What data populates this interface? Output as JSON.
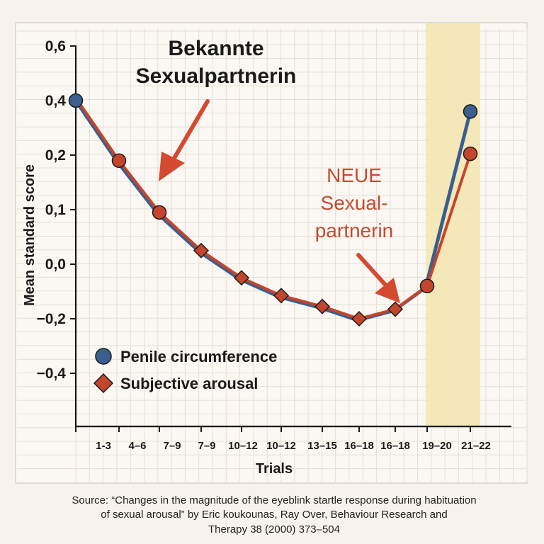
{
  "chart_data": {
    "type": "line",
    "ylabel": "Mean standard score",
    "xlabel": "Trials",
    "categories": [
      "1-3",
      "4–6",
      "7–9",
      "7–9",
      "10–12",
      "10–12",
      "13–15",
      "16–18",
      "16–18",
      "19–20",
      "21–22"
    ],
    "y_ticks": [
      {
        "value": 0.6,
        "label": "0,6"
      },
      {
        "value": 0.4,
        "label": "0,4"
      },
      {
        "value": 0.2,
        "label": "0,2"
      },
      {
        "value": 0.1,
        "label": "0,1"
      },
      {
        "value": 0.0,
        "label": "0,0"
      },
      {
        "value": -0.2,
        "label": "−0,2"
      },
      {
        "value": -0.4,
        "label": "−0,4"
      }
    ],
    "series": [
      {
        "name": "Penile circumference",
        "marker": "circle",
        "color": "#3a5f8f",
        "points": [
          {
            "label": "1-3",
            "value": 0.4
          },
          {
            "label": "21–22",
            "value": 0.36
          }
        ]
      },
      {
        "name": "Subjective arousal",
        "marker": "diamond",
        "color": "#c4452d",
        "points": [
          {
            "label": "4–6",
            "value": 0.19
          },
          {
            "label": "7–9",
            "value": 0.095
          },
          {
            "label": "7–9",
            "value": 0.025
          },
          {
            "label": "10–12",
            "value": -0.05
          },
          {
            "label": "10–12",
            "value": -0.115
          },
          {
            "label": "13–15",
            "value": -0.155
          },
          {
            "label": "16–18",
            "value": -0.2
          },
          {
            "label": "16–18",
            "value": -0.165
          },
          {
            "label": "19–20",
            "value": -0.08
          },
          {
            "label": "21–22",
            "value": 0.205
          }
        ]
      }
    ],
    "highlight_region": {
      "from_category": "19–20",
      "to_category": "21–22",
      "color": "#f3e6b3"
    },
    "annotations": {
      "familiar": [
        "Bekannte",
        "Sexualpartnerin"
      ],
      "novel": [
        "NEUE",
        "Sexual-",
        "partnerin"
      ]
    },
    "legend": {
      "placement": "bottom-left",
      "items": [
        {
          "label": "Penile circumference",
          "marker": "circle",
          "color": "#3a5f8f"
        },
        {
          "label": "Subjective arousal",
          "marker": "diamond",
          "color": "#c4452d"
        }
      ]
    }
  },
  "source": {
    "lines": [
      "Source: “Changes in the magnitude of the eyeblink startle response during habituation",
      "of sexual arousal” by Eric koukounas, Ray Over, Behaviour Research and",
      "Therapy 38 (2000) 373–504"
    ]
  }
}
